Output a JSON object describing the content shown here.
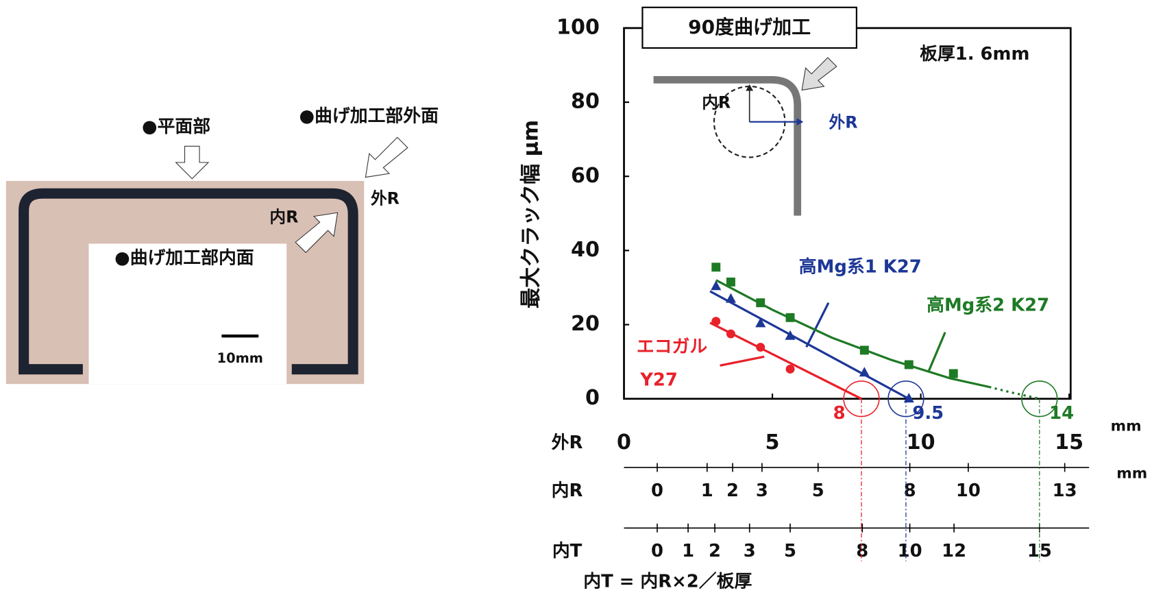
{
  "photo": {
    "flat": "●平面部",
    "outer": "●曲げ加工部外面",
    "outer_r": "外R",
    "inner_r": "内R",
    "inner": "●曲げ加工部内面",
    "scale": "10mm"
  },
  "chart_data": {
    "type": "scatter",
    "title": "90度曲げ加工",
    "thickness_note": "板厚1. 6mm",
    "y_label": "最大クラック幅 μm",
    "x_label": "外R",
    "x_unit": "mm",
    "inset": {
      "inner": "内R",
      "outer": "外R"
    },
    "xlim": [
      0,
      15
    ],
    "xticks": [
      0,
      5,
      10,
      15
    ],
    "ylim": [
      0,
      100
    ],
    "yticks": [
      0,
      20,
      40,
      60,
      80,
      100
    ],
    "series": [
      {
        "label_lines": [
          "エコガル",
          "Y27"
        ],
        "color": "#e8212b",
        "marker": "circle",
        "x": [
          3.1,
          3.6,
          4.6,
          5.6
        ],
        "values": [
          20.9,
          17.5,
          13.9,
          8.0
        ],
        "fit": [
          {
            "x": [
              2.9,
              8
            ],
            "values": [
              20.5,
              0
            ],
            "style": "solid"
          }
        ]
      },
      {
        "name": "高Mg系1 K27",
        "color": "#1d3797",
        "marker": "triangle",
        "x": [
          3.1,
          3.6,
          4.6,
          5.6,
          8.1,
          9.6
        ],
        "values": [
          30.3,
          26.9,
          20.3,
          16.9,
          7.0,
          0
        ],
        "fit": [
          {
            "x": [
              2.9,
              9.6
            ],
            "values": [
              29,
              0
            ],
            "style": "solid"
          }
        ]
      },
      {
        "name": "高Mg系2 K27",
        "color": "#1e7a25",
        "marker": "square",
        "x": [
          3.1,
          3.6,
          4.6,
          5.6,
          8.1,
          9.6,
          11.1
        ],
        "values": [
          35.5,
          31.5,
          25.9,
          21.9,
          13.1,
          9.2,
          6.8
        ],
        "fit": [
          {
            "x": [
              3.1,
              5,
              7,
              9,
              11,
              12.3
            ],
            "values": [
              32,
              24,
              16.5,
              10.5,
              5.5,
              3.2
            ],
            "style": "solid"
          },
          {
            "x": [
              12.3,
              13,
              14
            ],
            "values": [
              3.2,
              1.8,
              0
            ],
            "style": "dotted"
          }
        ]
      }
    ],
    "crossings": [
      {
        "x": 8,
        "color": "#e8212b"
      },
      {
        "x": 9.5,
        "color": "#1d3797"
      },
      {
        "x": 14,
        "color": "#1e7a25"
      }
    ],
    "secondary_axes": [
      {
        "label": "内R",
        "unit": "mm",
        "ticks": [
          {
            "value": 1.12,
            "label": "0"
          },
          {
            "value": 2.8,
            "label": "1"
          },
          {
            "value": 3.66,
            "label": "2"
          },
          {
            "value": 4.65,
            "label": "3"
          },
          {
            "value": 6.54,
            "label": "5"
          },
          {
            "value": 9.63,
            "label": "8"
          },
          {
            "value": 11.6,
            "label": "10"
          },
          {
            "value": 14.85,
            "label": "13"
          }
        ]
      },
      {
        "label": "内T",
        "ticks": [
          {
            "value": 1.12,
            "label": "0"
          },
          {
            "value": 2.16,
            "label": "1"
          },
          {
            "value": 3.06,
            "label": "2"
          },
          {
            "value": 4.23,
            "label": "3"
          },
          {
            "value": 5.6,
            "label": "5"
          },
          {
            "value": 8.03,
            "label": "8"
          },
          {
            "value": 9.63,
            "label": "10"
          },
          {
            "value": 11.12,
            "label": "12"
          },
          {
            "value": 14.0,
            "label": "15"
          }
        ]
      }
    ],
    "formula": "内T = 内R×2／板厚"
  }
}
